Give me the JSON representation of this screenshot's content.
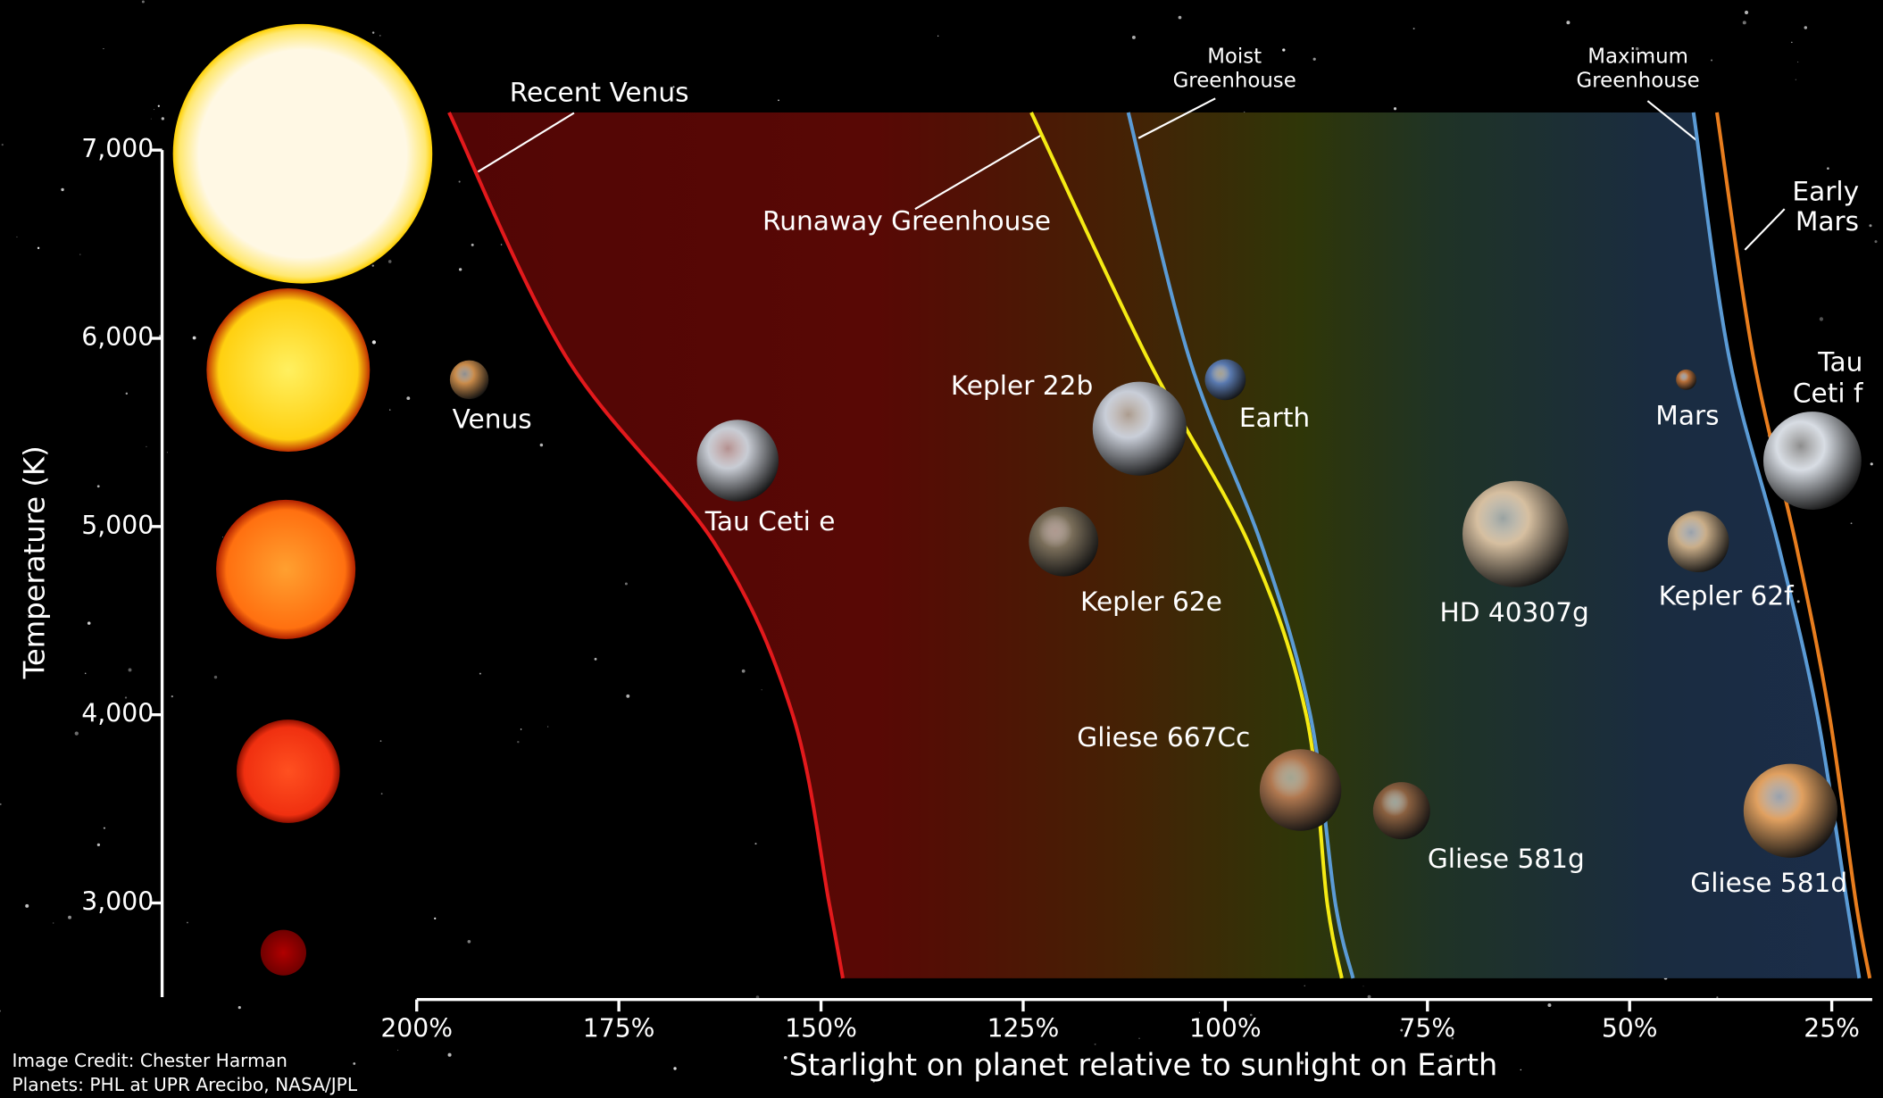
{
  "chart_data": {
    "type": "scatter",
    "xlabel": "Starlight on planet relative to sunlight on Earth",
    "ylabel": "Temperature (K)",
    "xlim": [
      200,
      20
    ],
    "ylim": [
      2500,
      7200
    ],
    "xticks": [
      {
        "value": 200,
        "label": "200%"
      },
      {
        "value": 175,
        "label": "175%"
      },
      {
        "value": 150,
        "label": "150%"
      },
      {
        "value": 125,
        "label": "125%"
      },
      {
        "value": 100,
        "label": "100%"
      },
      {
        "value": 75,
        "label": "75%"
      },
      {
        "value": 50,
        "label": "50%"
      },
      {
        "value": 25,
        "label": "25%"
      }
    ],
    "yticks": [
      {
        "value": 3000,
        "label": "3,000"
      },
      {
        "value": 4000,
        "label": "4,000"
      },
      {
        "value": 5000,
        "label": "5,000"
      },
      {
        "value": 6000,
        "label": "6,000"
      },
      {
        "value": 7000,
        "label": "7,000"
      }
    ],
    "series": [
      {
        "name": "Recent Venus",
        "color": "#e3191c",
        "x": [
          196,
          181.5,
          163,
          153.5,
          149,
          147.3
        ],
        "values": [
          7200,
          5900,
          4900,
          4000,
          3000,
          2600
        ]
      },
      {
        "name": "Runaway Greenhouse",
        "color": "#f5ea14",
        "x": [
          124,
          109.7,
          97,
          90,
          87.4,
          85.6
        ],
        "values": [
          7200,
          5900,
          4900,
          4000,
          3000,
          2600
        ]
      },
      {
        "name": "Moist Greenhouse",
        "color": "#5b9bd5",
        "x": [
          112,
          104.5,
          95.5,
          89.5,
          86.4,
          84.2
        ],
        "values": [
          7200,
          5900,
          4900,
          4000,
          3000,
          2600
        ]
      },
      {
        "name": "Maximum Greenhouse",
        "color": "#5b9bd5",
        "x": [
          42.1,
          37.7,
          31.6,
          26.8,
          23.1,
          21.6
        ],
        "values": [
          7200,
          5900,
          4900,
          4000,
          3000,
          2600
        ]
      },
      {
        "name": "Early Mars",
        "color": "#e87d1e",
        "x": [
          39.2,
          34.7,
          29.4,
          25.3,
          22,
          20.3
        ],
        "values": [
          7200,
          5900,
          4900,
          4000,
          3000,
          2600
        ]
      }
    ],
    "planets": {
      "names": [
        "Venus",
        "Tau Ceti e",
        "Kepler 22b",
        "Earth",
        "Kepler 62e",
        "Gliese 667Cc",
        "Gliese 581g",
        "HD 40307g",
        "Kepler 62f",
        "Mars",
        "Tau Ceti f",
        "Gliese 581d"
      ],
      "x": [
        193.5,
        160.3,
        110.6,
        100,
        120,
        90.7,
        78.2,
        64.1,
        41.5,
        43,
        27.4,
        30.1
      ],
      "values": [
        5780,
        5350,
        5520,
        5780,
        4920,
        3600,
        3490,
        4960,
        4920,
        5780,
        5350,
        3490
      ],
      "sizes": [
        0.95,
        2.0,
        2.3,
        1.0,
        1.7,
        2.0,
        1.4,
        2.6,
        1.5,
        0.5,
        2.4,
        2.3
      ],
      "colors": [
        "#c98b4a",
        "#c8ccd4",
        "#c9ced8",
        "#5a7ab0",
        "#7a6e5a",
        "#b07850",
        "#8a6040",
        "#d6bfa0",
        "#c9ad88",
        "#b8703a",
        "#d8dde4",
        "#e0a060"
      ]
    },
    "credits": [
      "Image Credit: Chester Harman",
      "Planets: PHL at UPR Arecibo, NASA/JPL"
    ]
  }
}
